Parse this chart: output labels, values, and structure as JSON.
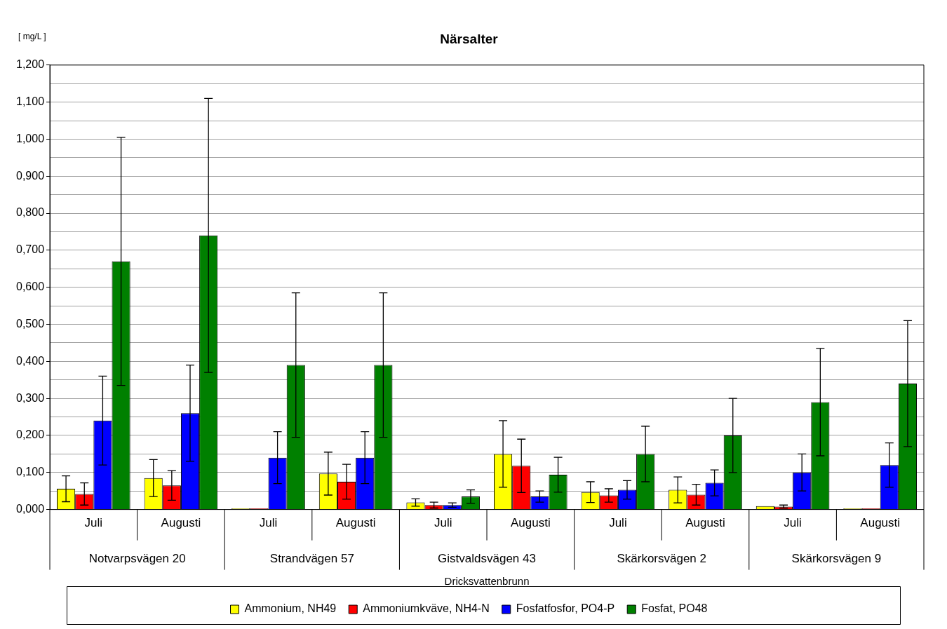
{
  "chart_data": {
    "type": "bar",
    "title": "Närsalter",
    "ylabel": "[ mg/L ]",
    "xlabel": "Dricksvattenbrunn",
    "categories": [
      "Juli",
      "Augusti",
      "Juli",
      "Augusti",
      "Juli",
      "Augusti",
      "Juli",
      "Augusti",
      "Juli",
      "Augusti"
    ],
    "annotations": [
      "Notvarpsvägen 20",
      "Strandvägen 57",
      "Gistvaldsvägen 43",
      "Skärkorsvägen 2",
      "Skärkorsvägen 9"
    ],
    "series": [
      {
        "name": "Ammonium, NH49",
        "color": "#ffff00",
        "values": [
          0.056,
          0.085,
          0.003,
          0.097,
          0.019,
          0.15,
          0.047,
          0.053,
          0.009,
          0.003
        ],
        "errors": [
          0.035,
          0.05,
          null,
          0.058,
          0.01,
          0.09,
          0.028,
          0.035,
          null,
          null
        ]
      },
      {
        "name": "Ammoniumkväve, NH4-N",
        "color": "#ff0000",
        "values": [
          0.042,
          0.065,
          0.003,
          0.075,
          0.012,
          0.118,
          0.038,
          0.04,
          0.008,
          0.003
        ],
        "errors": [
          0.03,
          0.04,
          null,
          0.047,
          0.008,
          0.072,
          0.018,
          0.028,
          [
            0.004,
            0.012
          ],
          null
        ]
      },
      {
        "name": "Fosfatfosfor, PO4-P",
        "color": "#0000ff",
        "values": [
          0.24,
          0.26,
          0.14,
          0.14,
          0.012,
          0.035,
          0.053,
          0.072,
          0.1,
          0.12
        ],
        "errors": [
          0.12,
          0.13,
          0.07,
          0.07,
          0.006,
          0.015,
          0.025,
          0.035,
          0.05,
          0.06
        ]
      },
      {
        "name": "Fosfat, PO48",
        "color": "#008000",
        "values": [
          0.67,
          0.74,
          0.39,
          0.39,
          0.035,
          0.094,
          0.15,
          0.2,
          0.29,
          0.34
        ],
        "errors": [
          0.335,
          0.37,
          0.195,
          0.195,
          0.018,
          0.047,
          0.075,
          0.1,
          0.145,
          0.17
        ]
      }
    ],
    "ylim": [
      0,
      1.2
    ],
    "yticks": [
      {
        "value": 0,
        "label": "0,000"
      },
      {
        "value": 0.05,
        "label": null
      },
      {
        "value": 0.1,
        "label": "0,100"
      },
      {
        "value": 0.15,
        "label": null
      },
      {
        "value": 0.2,
        "label": "0,200"
      },
      {
        "value": 0.25,
        "label": null
      },
      {
        "value": 0.3,
        "label": "0,300"
      },
      {
        "value": 0.35,
        "label": null
      },
      {
        "value": 0.4,
        "label": "0,400"
      },
      {
        "value": 0.45,
        "label": null
      },
      {
        "value": 0.5,
        "label": "0,500"
      },
      {
        "value": 0.55,
        "label": null
      },
      {
        "value": 0.6,
        "label": "0,600"
      },
      {
        "value": 0.65,
        "label": null
      },
      {
        "value": 0.7,
        "label": "0,700"
      },
      {
        "value": 0.75,
        "label": null
      },
      {
        "value": 0.8,
        "label": "0,800"
      },
      {
        "value": 0.85,
        "label": null
      },
      {
        "value": 0.9,
        "label": "0,900"
      },
      {
        "value": 0.95,
        "label": null
      },
      {
        "value": 1.0,
        "label": "1,000"
      },
      {
        "value": 1.05,
        "label": null
      },
      {
        "value": 1.1,
        "label": "1,100"
      },
      {
        "value": 1.15,
        "label": null
      },
      {
        "value": 1.2,
        "label": "1,200"
      }
    ],
    "grid": "y",
    "legend": "bottom"
  }
}
